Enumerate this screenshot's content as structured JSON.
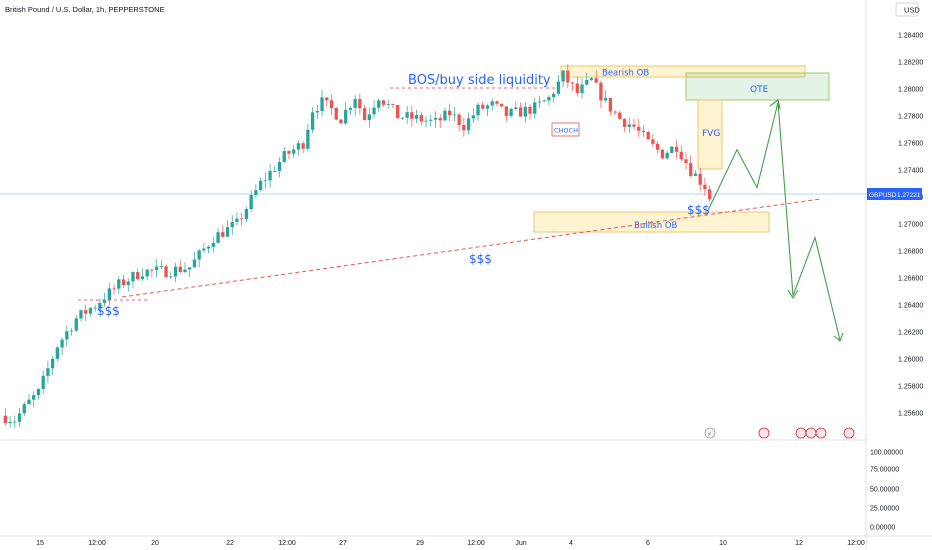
{
  "header": {
    "title": "British Pound / U.S. Dollar, 1h, PEPPERSTONE",
    "currency": "USD"
  },
  "chart_data": {
    "type": "candlestick",
    "symbol": "GBPUSD",
    "last_price": "1.27221",
    "ylim": [
      1.2535,
      1.286
    ],
    "price_ticks": [
      "1.28400",
      "1.28200",
      "1.28000",
      "1.27800",
      "1.27600",
      "1.27400",
      "1.27200",
      "1.27000",
      "1.26800",
      "1.26600",
      "1.26400",
      "1.26200",
      "1.26000",
      "1.25800",
      "1.25600"
    ],
    "indicator_ticks": [
      "100.00000",
      "75.00000",
      "50.00000",
      "25.00000",
      "0.00000"
    ],
    "x_ticks": [
      "15",
      "12:00",
      "20",
      "22",
      "12:00",
      "27",
      "29",
      "12:00",
      "Jun",
      "4",
      "6",
      "10",
      "12",
      "12:00"
    ],
    "annotations": {
      "bos": "BOS/buy side liquidity",
      "bearish_ob": "Bearish OB",
      "bullish_ob": "Bullish OB",
      "ote": "OTE",
      "fvg": "FVG",
      "choch": "CHOCH",
      "liq_1": "$$$",
      "liq_2": "$$$",
      "liq_3": "$$$"
    },
    "price_path": [
      [
        0,
        1.2558
      ],
      [
        3,
        1.2555
      ],
      [
        6,
        1.2568
      ],
      [
        8,
        1.2575
      ],
      [
        12,
        1.261
      ],
      [
        16,
        1.263
      ],
      [
        20,
        1.264
      ],
      [
        25,
        1.2655
      ],
      [
        30,
        1.2665
      ],
      [
        35,
        1.2665
      ],
      [
        40,
        1.2668
      ],
      [
        45,
        1.269
      ],
      [
        50,
        1.27
      ],
      [
        55,
        1.273
      ],
      [
        60,
        1.275
      ],
      [
        64,
        1.276
      ],
      [
        66,
        1.2785
      ],
      [
        68,
        1.279
      ],
      [
        70,
        1.2785
      ],
      [
        72,
        1.2778
      ],
      [
        75,
        1.2795
      ],
      [
        77,
        1.2778
      ],
      [
        80,
        1.2795
      ],
      [
        84,
        1.278
      ],
      [
        88,
        1.2778
      ],
      [
        92,
        1.2775
      ],
      [
        95,
        1.2782
      ],
      [
        98,
        1.2773
      ],
      [
        101,
        1.2785
      ],
      [
        104,
        1.2788
      ],
      [
        107,
        1.2781
      ],
      [
        110,
        1.2783
      ],
      [
        113,
        1.2786
      ],
      [
        116,
        1.2793
      ],
      [
        119,
        1.281
      ],
      [
        122,
        1.2797
      ],
      [
        125,
        1.2806
      ],
      [
        128,
        1.279
      ],
      [
        131,
        1.2778
      ],
      [
        134,
        1.2772
      ],
      [
        137,
        1.276
      ],
      [
        140,
        1.2752
      ],
      [
        143,
        1.2758
      ],
      [
        146,
        1.274
      ],
      [
        149,
        1.2728
      ],
      [
        150,
        1.272
      ]
    ],
    "projection": [
      [
        708,
        1.271
      ],
      [
        737,
        1.2755
      ],
      [
        757,
        1.2727
      ],
      [
        778,
        1.279
      ],
      [
        793,
        1.2647
      ],
      [
        815,
        1.269
      ],
      [
        840,
        1.2614
      ]
    ]
  }
}
